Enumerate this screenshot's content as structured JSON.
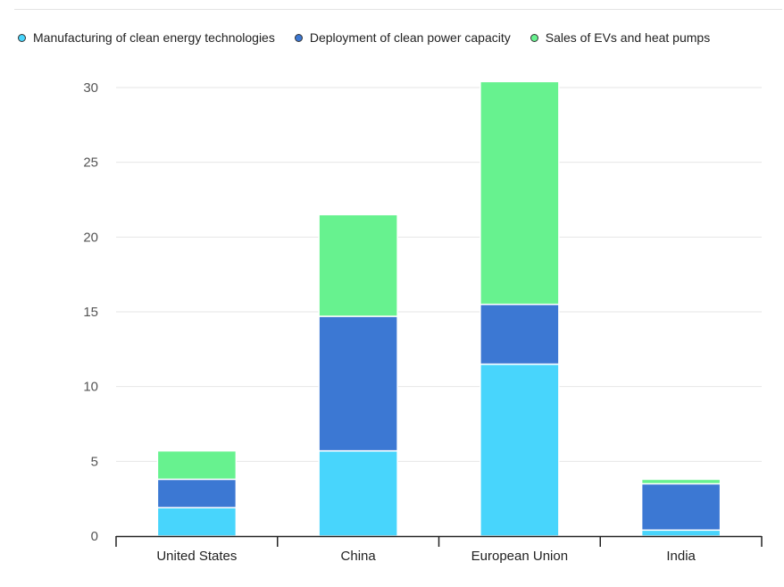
{
  "chart_data": {
    "type": "bar",
    "stacked": true,
    "title": "",
    "xlabel": "",
    "ylabel": "",
    "ylim": [
      0,
      30
    ],
    "yticks": [
      0,
      5,
      10,
      15,
      20,
      25,
      30
    ],
    "grid": true,
    "legend_position": "top-left",
    "categories": [
      "United States",
      "China",
      "European Union",
      "India"
    ],
    "series": [
      {
        "name": "Manufacturing of clean energy technologies",
        "color": "#48d5fc",
        "values": [
          1.9,
          5.7,
          11.5,
          0.4
        ]
      },
      {
        "name": "Deployment of clean power capacity",
        "color": "#3c78d3",
        "values": [
          1.9,
          9.0,
          4.0,
          3.1
        ]
      },
      {
        "name": "Sales of EVs and heat pumps",
        "color": "#67f28f",
        "values": [
          1.9,
          6.8,
          14.9,
          0.3
        ]
      }
    ]
  }
}
